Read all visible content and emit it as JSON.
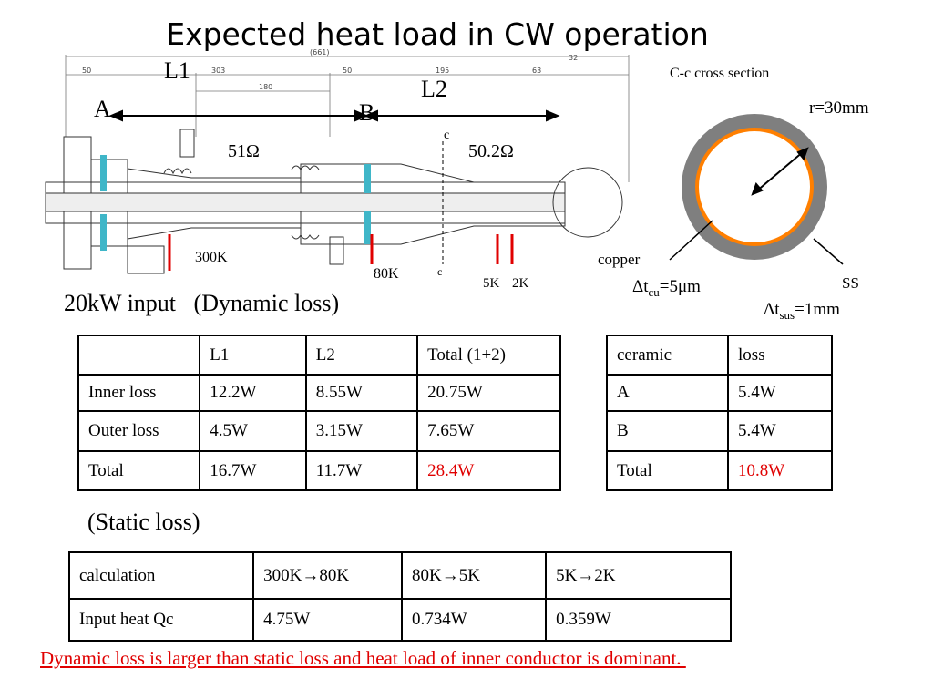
{
  "title": "Expected heat load in CW operation",
  "drawing": {
    "sections": [
      "L1",
      "L2"
    ],
    "ports": [
      "A",
      "B"
    ],
    "impedances": [
      "51Ω",
      "50.2Ω"
    ],
    "cut_marks": [
      "c",
      "c"
    ],
    "temperatures": [
      "300K",
      "80K",
      "5K",
      "2K"
    ],
    "dimensions": [
      "(661)",
      "50",
      "303",
      "180",
      "50",
      "195",
      "63",
      "32"
    ]
  },
  "cross_section": {
    "title": "C-c cross section",
    "radius": "r=30mm",
    "inner_material": "copper",
    "inner_thickness": [
      "Δt",
      "cu",
      "=5μm"
    ],
    "outer_material": "SS",
    "outer_thickness": [
      "Δt",
      "sus",
      "=1mm"
    ]
  },
  "dynamic": {
    "heading": [
      "20kW input",
      "(Dynamic loss)"
    ],
    "conductor_table": {
      "header": [
        "L1",
        "L2",
        "Total (1+2)"
      ],
      "rows": [
        [
          "Inner loss",
          "12.2W",
          "8.55W",
          "20.75W"
        ],
        [
          "Outer loss",
          "4.5W",
          "3.15W",
          "7.65W"
        ],
        [
          "Total",
          "16.7W",
          "11.7W",
          "28.4W"
        ]
      ]
    },
    "ceramic_table": {
      "header": [
        "ceramic",
        "loss"
      ],
      "rows": [
        [
          "A",
          "5.4W"
        ],
        [
          "B",
          "5.4W"
        ],
        [
          "Total",
          "10.8W"
        ]
      ]
    }
  },
  "static": {
    "heading": "(Static loss)",
    "table": {
      "header": [
        "calculation",
        "300K→80K",
        "80K→5K",
        "5K→2K"
      ],
      "rows": [
        [
          "Input heat Qc",
          "4.75W",
          "0.734W",
          "0.359W"
        ]
      ]
    }
  },
  "conclusion": "Dynamic loss is larger than static loss and heat load of inner conductor is dominant. "
}
